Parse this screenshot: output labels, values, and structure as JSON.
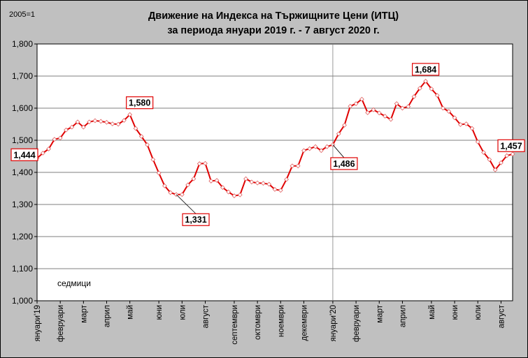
{
  "chart_data": {
    "type": "line",
    "title_line1": "Движение на Индекса на Тържищните Цени (ИТЦ)",
    "title_line2": "за периода януари 2019 г. - 7 август 2020 г.",
    "base_label": "2005=1",
    "unit_label": "седмици",
    "ylim": [
      1.0,
      1.8
    ],
    "yticks": [
      1.0,
      1.1,
      1.2,
      1.3,
      1.4,
      1.5,
      1.6,
      1.7,
      1.8
    ],
    "ytick_labels": [
      "1,000",
      "1,100",
      "1,200",
      "1,300",
      "1,400",
      "1,500",
      "1,600",
      "1,700",
      "1,800"
    ],
    "grid": true,
    "series_color": "#e00000",
    "month_labels": [
      "януари'19",
      "февруари",
      "март",
      "април",
      "май",
      "юни",
      "юли",
      "август",
      "септември",
      "октомври",
      "ноември",
      "декември",
      "януари'20",
      "февруари",
      "март",
      "април",
      "май",
      "юни",
      "юли",
      "август"
    ],
    "month_week_index": [
      0,
      4,
      8,
      12,
      16,
      21,
      25,
      29,
      34,
      38,
      42,
      46,
      51,
      55,
      59,
      63,
      68,
      72,
      76,
      80
    ],
    "values": [
      1.444,
      1.46,
      1.473,
      1.503,
      1.507,
      1.532,
      1.541,
      1.557,
      1.541,
      1.557,
      1.561,
      1.559,
      1.556,
      1.551,
      1.55,
      1.562,
      1.58,
      1.537,
      1.512,
      1.486,
      1.44,
      1.398,
      1.358,
      1.337,
      1.331,
      1.331,
      1.361,
      1.38,
      1.427,
      1.428,
      1.373,
      1.375,
      1.353,
      1.339,
      1.327,
      1.33,
      1.38,
      1.37,
      1.367,
      1.366,
      1.363,
      1.347,
      1.344,
      1.378,
      1.42,
      1.42,
      1.468,
      1.474,
      1.48,
      1.468,
      1.48,
      1.486,
      1.52,
      1.547,
      1.606,
      1.614,
      1.628,
      1.586,
      1.595,
      1.585,
      1.575,
      1.565,
      1.614,
      1.6,
      1.605,
      1.636,
      1.662,
      1.684,
      1.66,
      1.64,
      1.6,
      1.59,
      1.57,
      1.549,
      1.551,
      1.537,
      1.495,
      1.462,
      1.44,
      1.408,
      1.43,
      1.452,
      1.457
    ],
    "callouts": [
      {
        "index": 0,
        "text": "1,444"
      },
      {
        "index": 16,
        "text": "1,580"
      },
      {
        "index": 24,
        "text": "1,331"
      },
      {
        "index": 51,
        "text": "1,486"
      },
      {
        "index": 67,
        "text": "1,684"
      },
      {
        "index": 82,
        "text": "1,457"
      }
    ]
  }
}
